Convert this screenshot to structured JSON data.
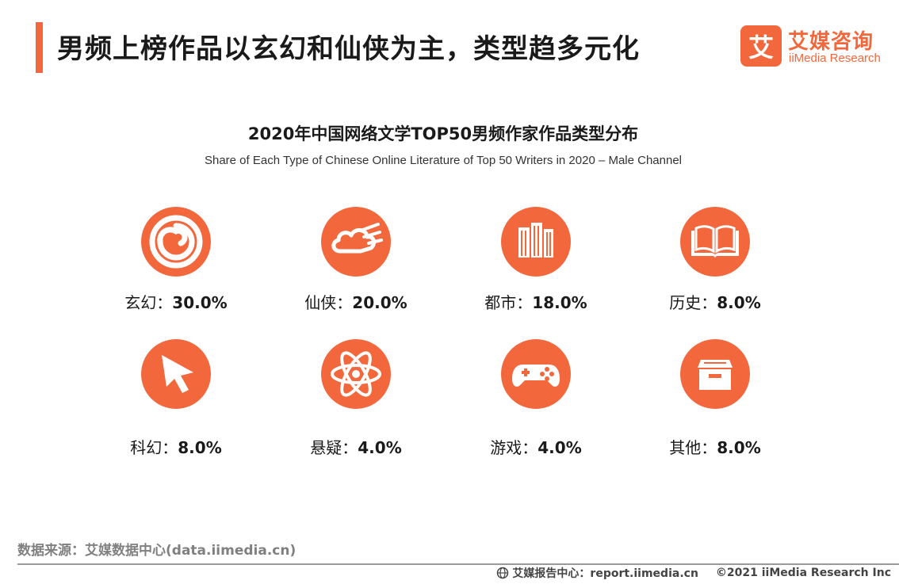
{
  "header": {
    "title": "男频上榜作品以玄幻和仙侠为主，类型趋多元化"
  },
  "logo": {
    "name_cn": "艾媒咨询",
    "name_en": "iiMedia Research",
    "mark_char": "艾"
  },
  "chart_data": {
    "type": "table",
    "title": "2020年中国网络文学TOP50男频作家作品类型分布",
    "subtitle": "Share of Each Type of Chinese Online Literature of Top 50 Writers in 2020 – Male Channel",
    "separator": "：",
    "categories": [
      "玄幻",
      "仙侠",
      "都市",
      "历史",
      "科幻",
      "悬疑",
      "游戏",
      "其他"
    ],
    "values": [
      30.0,
      20.0,
      18.0,
      8.0,
      8.0,
      4.0,
      4.0,
      8.0
    ],
    "value_labels": [
      "30.0%",
      "20.0%",
      "18.0%",
      "8.0%",
      "8.0%",
      "4.0%",
      "4.0%",
      "8.0%"
    ],
    "icons": [
      "spiral-icon",
      "cloud-icon",
      "city-buildings-icon",
      "open-book-icon",
      "cursor-icon",
      "atom-icon",
      "gamepad-icon",
      "archive-box-icon"
    ],
    "unit": "%"
  },
  "colors": {
    "accent": "#f2683c",
    "text": "#1a1a1a",
    "muted": "#808080"
  },
  "source": {
    "text": "数据来源：艾媒数据中心(data.iimedia.cn)"
  },
  "footer": {
    "report_center": "艾媒报告中心：report.iimedia.cn",
    "copyright": "©2021  iiMedia Research  Inc"
  }
}
